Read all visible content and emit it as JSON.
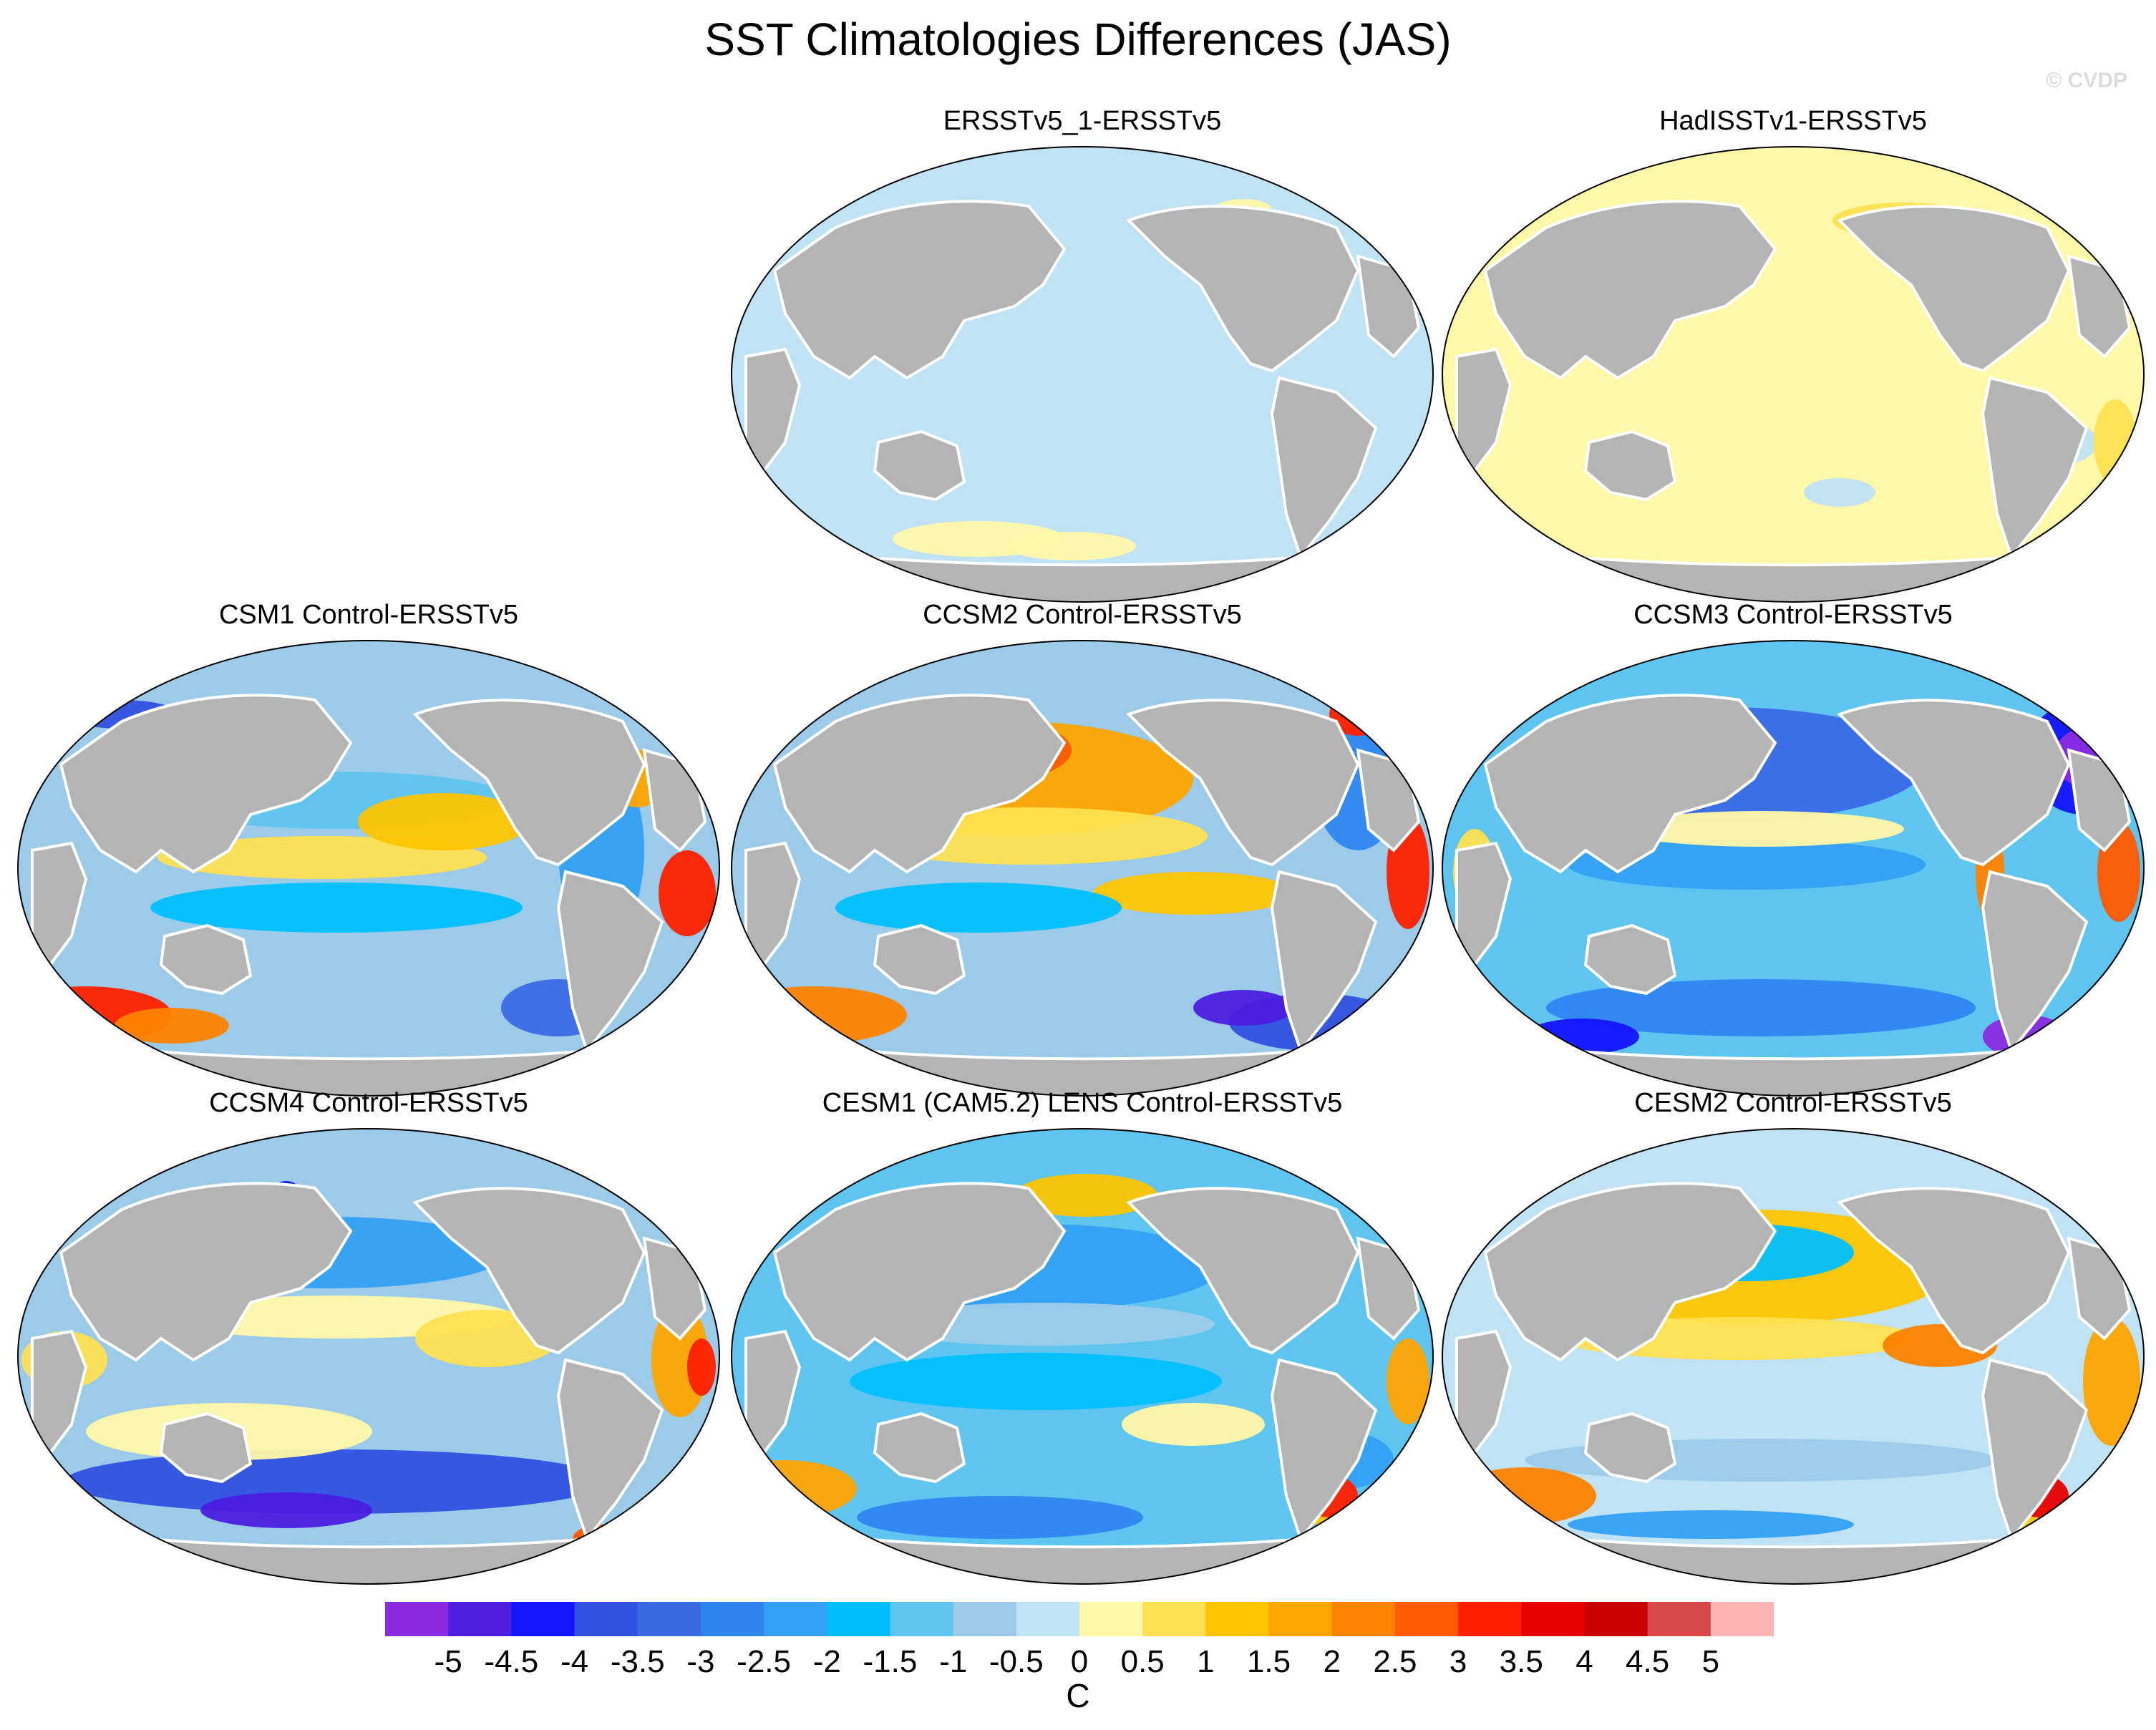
{
  "title": "SST Climatologies Differences (JAS)",
  "watermark": "© CVDP",
  "panels": [
    {
      "title": "ERSSTv5_1-ERSSTv5",
      "pattern": "uniform-cool"
    },
    {
      "title": "HadISSTv1-ERSSTv5",
      "pattern": "uniform-warm"
    },
    {
      "title": "CSM1 Control-ERSSTv5",
      "pattern": "mixed"
    },
    {
      "title": "CCSM2 Control-ERSSTv5",
      "pattern": "warm-north-pacific"
    },
    {
      "title": "CCSM3 Control-ERSSTv5",
      "pattern": "cold-north"
    },
    {
      "title": "CCSM4 Control-ERSSTv5",
      "pattern": "cold-south"
    },
    {
      "title": "CESM1 (CAM5.2) LENS Control-ERSSTv5",
      "pattern": "cool"
    },
    {
      "title": "CESM2 Control-ERSSTv5",
      "pattern": "warm"
    }
  ],
  "colorbar": {
    "unit": "C",
    "labels": [
      "-5",
      "-4.5",
      "-4",
      "-3.5",
      "-3",
      "-2.5",
      "-2",
      "-1.5",
      "-1",
      "-0.5",
      "0",
      "0.5",
      "1",
      "1.5",
      "2",
      "2.5",
      "3",
      "3.5",
      "4",
      "4.5",
      "5"
    ],
    "colors": [
      "#8a2be2",
      "#4b1ee0",
      "#1414ff",
      "#3050e0",
      "#3a6ae6",
      "#2e86f0",
      "#33a0f5",
      "#00bfff",
      "#5ec4f0",
      "#9ccbea",
      "#c0e2f5",
      "#fff8a8",
      "#ffe050",
      "#ffc400",
      "#ffa400",
      "#ff8200",
      "#ff5a00",
      "#ff2000",
      "#e80000",
      "#c80000",
      "#d84848",
      "#ffb4b4"
    ]
  },
  "colors": {
    "land": "#b4b4b4",
    "coast": "#ffffff",
    "border": "#000000"
  }
}
